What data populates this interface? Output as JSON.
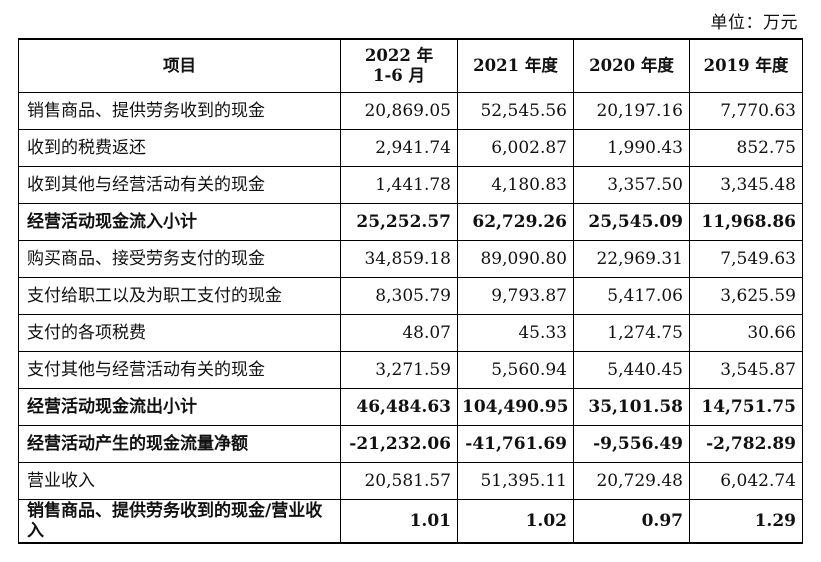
{
  "unit": "单位：万元",
  "headers": [
    "项目",
    "2022 年\n1-6 月",
    "2021 年度",
    "2020 年度",
    "2019 年度"
  ],
  "rows": [
    {
      "label": "销售商品、提供劳务收到的现金",
      "values": [
        "20,869.05",
        "52,545.56",
        "20,197.16",
        "7,770.63"
      ],
      "bold": false
    },
    {
      "label": "收到的税费返还",
      "values": [
        "2,941.74",
        "6,002.87",
        "1,990.43",
        "852.75"
      ],
      "bold": false
    },
    {
      "label": "收到其他与经营活动有关的现金",
      "values": [
        "1,441.78",
        "4,180.83",
        "3,357.50",
        "3,345.48"
      ],
      "bold": false
    },
    {
      "label": "经营活动现金流入小计",
      "values": [
        "25,252.57",
        "62,729.26",
        "25,545.09",
        "11,968.86"
      ],
      "bold": true
    },
    {
      "label": "购买商品、接受劳务支付的现金",
      "values": [
        "34,859.18",
        "89,090.80",
        "22,969.31",
        "7,549.63"
      ],
      "bold": false
    },
    {
      "label": "支付给职工以及为职工支付的现金",
      "values": [
        "8,305.79",
        "9,793.87",
        "5,417.06",
        "3,625.59"
      ],
      "bold": false
    },
    {
      "label": "支付的各项税费",
      "values": [
        "48.07",
        "45.33",
        "1,274.75",
        "30.66"
      ],
      "bold": false
    },
    {
      "label": "支付其他与经营活动有关的现金",
      "values": [
        "3,271.59",
        "5,560.94",
        "5,440.45",
        "3,545.87"
      ],
      "bold": false
    },
    {
      "label": "经营活动现金流出小计",
      "values": [
        "46,484.63",
        "104,490.95",
        "35,101.58",
        "14,751.75"
      ],
      "bold": true
    },
    {
      "label": "经营活动产生的现金流量净额",
      "values": [
        "-21,232.06",
        "-41,761.69",
        "-9,556.49",
        "-2,782.89"
      ],
      "bold": true
    },
    {
      "label": "营业收入",
      "values": [
        "20,581.57",
        "51,395.11",
        "20,729.48",
        "6,042.74"
      ],
      "bold": false
    },
    {
      "label": "销售商品、提供劳务收到的现金/营业收入",
      "values": [
        "1.01",
        "1.02",
        "0.97",
        "1.29"
      ],
      "bold": true
    }
  ]
}
